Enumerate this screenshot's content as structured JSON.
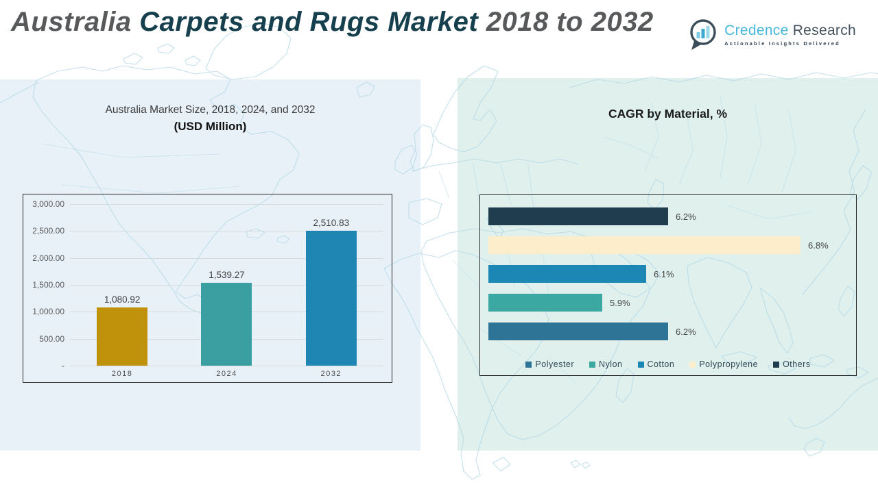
{
  "header": {
    "title_part1": "Australia ",
    "title_part2": "Carpets and Rugs Market ",
    "title_part3": "2018 to 2032"
  },
  "logo": {
    "brand_primary": "Credence ",
    "brand_secondary": "Research",
    "tagline": "Actionable Insights Delivered",
    "icon": "bar-chart-bubble-icon",
    "brand_color": "#45b6dc",
    "brand_dark_color": "#44535f"
  },
  "colors": {
    "left_panel_bg": "#e8f1f8",
    "right_panel_bg": "#dff0ed",
    "map_stroke": "#b5d9e6"
  },
  "chart_data": [
    {
      "type": "bar",
      "title_line1": "Australia Market Size, 2018, 2024, and 2032",
      "title_line2": "(USD Million)",
      "categories": [
        "2018",
        "2024",
        "2032"
      ],
      "values": [
        1080.92,
        1539.27,
        2510.83
      ],
      "value_labels": [
        "1,080.92",
        "1,539.27",
        "2,510.83"
      ],
      "bar_colors": [
        "#c0920b",
        "#3b9ea0",
        "#1f86b4"
      ],
      "ylim": [
        0,
        3000
      ],
      "ytick_values": [
        3000,
        2500,
        2000,
        1500,
        1000,
        500,
        0
      ],
      "ytick_labels": [
        "3,000.00",
        "2,500.00",
        "2,000.00",
        "1,500.00",
        "1,000.00",
        "500.00",
        "-"
      ],
      "grid": true,
      "legend_position": "none"
    },
    {
      "type": "bar-horizontal",
      "title": "CAGR by Material, %",
      "xlim_estimated": [
        5.4,
        6.9
      ],
      "grid": false,
      "legend_position": "bottom",
      "series": [
        {
          "name": "Others",
          "value": 6.2,
          "label": "6.2%",
          "color": "#203d4f"
        },
        {
          "name": "Polypropylene",
          "value": 6.8,
          "label": "6.8%",
          "color": "#fdeecb"
        },
        {
          "name": "Cotton",
          "value": 6.1,
          "label": "6.1%",
          "color": "#1c86b4"
        },
        {
          "name": "Nylon",
          "value": 5.9,
          "label": "5.9%",
          "color": "#3ba8a2"
        },
        {
          "name": "Polyester",
          "value": 6.2,
          "label": "6.2%",
          "color": "#2e7496"
        }
      ],
      "legend": [
        {
          "label": "Polyester",
          "color": "#2e7496"
        },
        {
          "label": "Nylon",
          "color": "#3ba8a2"
        },
        {
          "label": "Cotton",
          "color": "#1c86b4"
        },
        {
          "label": "Polypropylene",
          "color": "#fdeecb"
        },
        {
          "label": "Others",
          "color": "#203d4f"
        }
      ]
    }
  ]
}
